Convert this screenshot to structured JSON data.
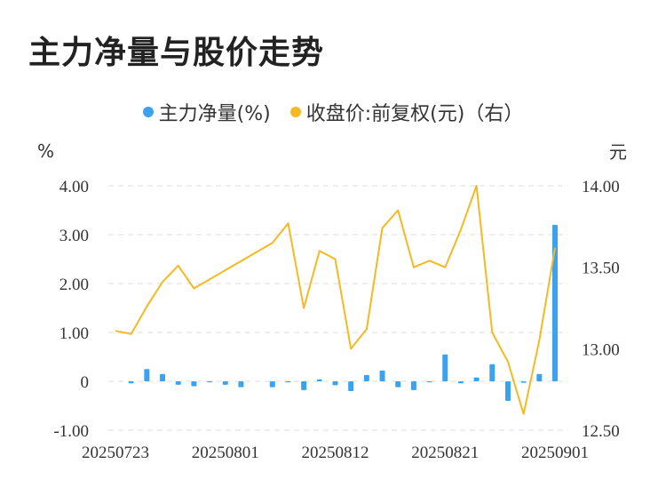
{
  "title": "主力净量与股价走势",
  "chart_data": {
    "type": "bar+line",
    "y_left_unit": "%",
    "y_right_unit": "元",
    "y_left_ticks": [
      "4.00",
      "3.00",
      "2.00",
      "1.00",
      "0",
      "-1.00"
    ],
    "y_right_ticks": [
      "14.00",
      "13.50",
      "13.00",
      "12.50"
    ],
    "y_left_lim": [
      -1,
      4
    ],
    "y_right_lim": [
      12.5,
      14
    ],
    "x_tick_labels": [
      "20250723",
      "20250801",
      "20250812",
      "20250821",
      "20250901"
    ],
    "grid": true,
    "legend_position": "top-center",
    "series": [
      {
        "name": "主力净量(%)",
        "type": "bar",
        "axis": "left",
        "color": "#3ba2f0",
        "x": [
          "20250723",
          "20250724",
          "20250725",
          "20250728",
          "20250729",
          "20250730",
          "20250731",
          "20250801",
          "20250804",
          "20250805",
          "20250806",
          "20250807",
          "20250808",
          "20250811",
          "20250812",
          "20250813",
          "20250814",
          "20250815",
          "20250818",
          "20250819",
          "20250820",
          "20250821",
          "20250822",
          "20250825",
          "20250826",
          "20250827",
          "20250828",
          "20250829",
          "20250901"
        ],
        "values": [
          0.0,
          -0.04,
          0.25,
          0.15,
          -0.07,
          -0.1,
          -0.02,
          -0.07,
          -0.12,
          0.0,
          -0.12,
          -0.02,
          -0.18,
          0.04,
          -0.08,
          -0.2,
          0.13,
          0.22,
          -0.12,
          -0.18,
          -0.02,
          0.55,
          -0.04,
          0.08,
          0.35,
          -0.4,
          -0.03,
          0.15,
          3.2
        ]
      },
      {
        "name": "收盘价:前复权(元)（右）",
        "type": "line",
        "axis": "right",
        "color": "#f5b921",
        "x": [
          "20250723",
          "20250724",
          "20250725",
          "20250728",
          "20250729",
          "20250730",
          "20250731",
          "20250801",
          "20250804",
          "20250805",
          "20250806",
          "20250807",
          "20250808",
          "20250811",
          "20250812",
          "20250813",
          "20250814",
          "20250815",
          "20250818",
          "20250819",
          "20250820",
          "20250821",
          "20250822",
          "20250825",
          "20250826",
          "20250827",
          "20250828",
          "20250829",
          "20250901"
        ],
        "values": [
          13.11,
          13.09,
          13.26,
          13.41,
          13.51,
          13.37,
          null,
          null,
          null,
          null,
          13.65,
          13.77,
          13.25,
          13.6,
          13.55,
          13.0,
          13.12,
          13.74,
          13.85,
          13.5,
          13.54,
          13.5,
          13.73,
          14.0,
          13.1,
          12.92,
          12.6,
          13.05,
          13.62
        ]
      }
    ]
  }
}
